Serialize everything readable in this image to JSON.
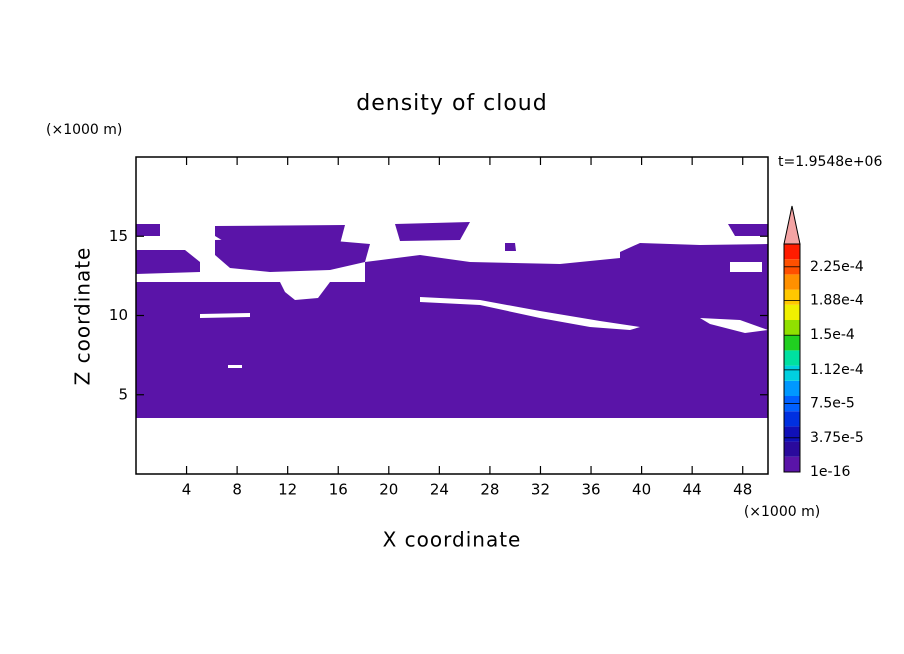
{
  "chart_data": {
    "type": "contour",
    "title": "density of cloud",
    "x_label": "X coordinate",
    "y_label": "Z coordinate",
    "x_unit": "(×1000 m)",
    "y_unit": "(×1000 m)",
    "time_label": "t=1.9548e+06",
    "xlim": [
      0,
      50
    ],
    "ylim": [
      0,
      20
    ],
    "xticks": [
      4,
      8,
      12,
      16,
      20,
      24,
      28,
      32,
      36,
      40,
      44,
      48
    ],
    "yticks": [
      5,
      10,
      15
    ],
    "colorbar": {
      "lim": [
        1e-16,
        0.00025
      ],
      "ticks": [
        1e-16,
        {
          "value": 3.75e-05,
          "label": "3.75e-5"
        },
        {
          "value": 7.5e-05,
          "label": "7.5e-5"
        },
        {
          "value": 0.000112,
          "label": "1.12e-4"
        },
        {
          "value": 0.00015,
          "label": "1.5e-4"
        },
        {
          "value": 0.000188,
          "label": "1.88e-4"
        },
        {
          "value": 0.000225,
          "label": "2.25e-4"
        }
      ],
      "colors": [
        "#5a14a8",
        "#2a0a9c",
        "#1010b8",
        "#0030e0",
        "#0060ff",
        "#0098ff",
        "#00d0e0",
        "#00e0a0",
        "#20d020",
        "#90e000",
        "#f0f000",
        "#ffc800",
        "#ff9000",
        "#ff5000",
        "#ff1c00"
      ],
      "extend_color": "#f4a4a4"
    }
  }
}
